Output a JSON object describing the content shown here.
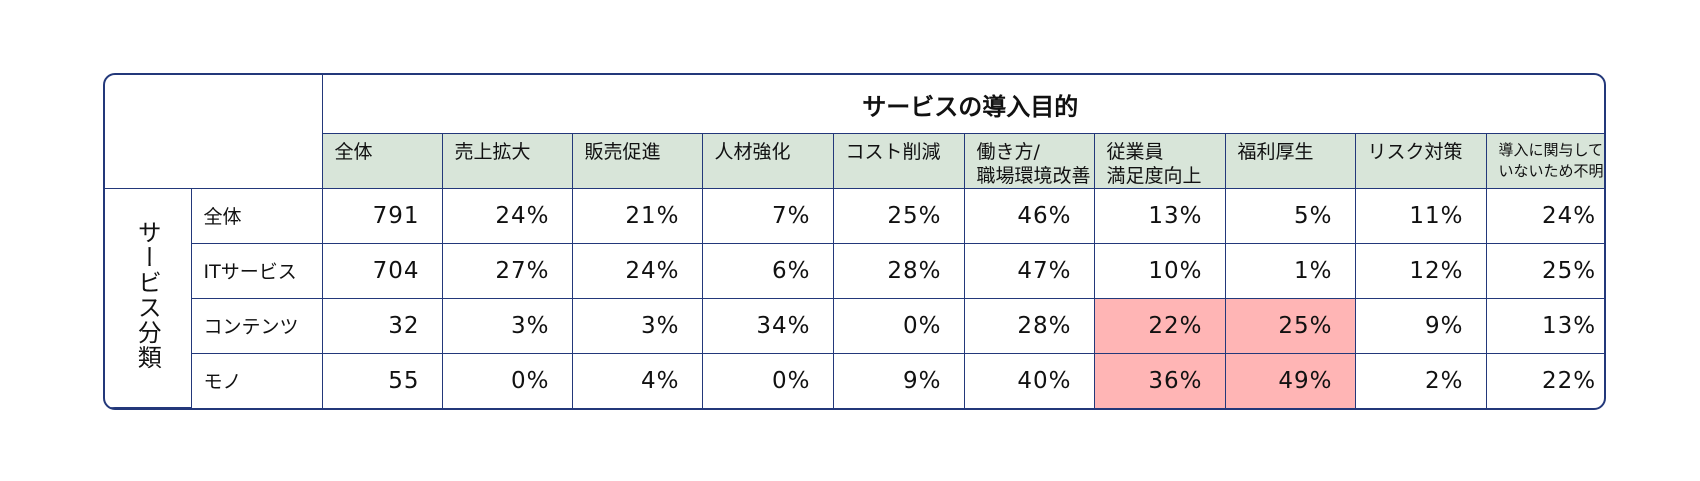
{
  "chart_data": {
    "type": "table",
    "title": "サービスの導入目的",
    "row_group_label": "サービス分類",
    "columns": [
      "全体",
      "売上拡大",
      "販売促進",
      "人材強化",
      "コスト削減",
      "働き方/\n職場環境改善",
      "従業員\n満足度向上",
      "福利厚生",
      "リスク対策",
      "導入に関与して\nいないため不明"
    ],
    "rows": [
      {
        "label": "全体",
        "values": [
          "791",
          "24%",
          "21%",
          "7%",
          "25%",
          "46%",
          "13%",
          "5%",
          "11%",
          "24%"
        ]
      },
      {
        "label": "ITサービス",
        "values": [
          "704",
          "27%",
          "24%",
          "6%",
          "28%",
          "47%",
          "10%",
          "1%",
          "12%",
          "25%"
        ]
      },
      {
        "label": "コンテンツ",
        "values": [
          "32",
          "3%",
          "3%",
          "34%",
          "0%",
          "28%",
          "22%",
          "25%",
          "9%",
          "13%"
        ]
      },
      {
        "label": "モノ",
        "values": [
          "55",
          "0%",
          "4%",
          "0%",
          "9%",
          "40%",
          "36%",
          "49%",
          "2%",
          "22%"
        ]
      }
    ],
    "highlighted_cells": [
      [
        2,
        6
      ],
      [
        2,
        7
      ],
      [
        3,
        6
      ],
      [
        3,
        7
      ]
    ]
  },
  "colors": {
    "border": "#23387a",
    "header_background": "#d8e5d9",
    "highlight": "#ffb5b5"
  }
}
